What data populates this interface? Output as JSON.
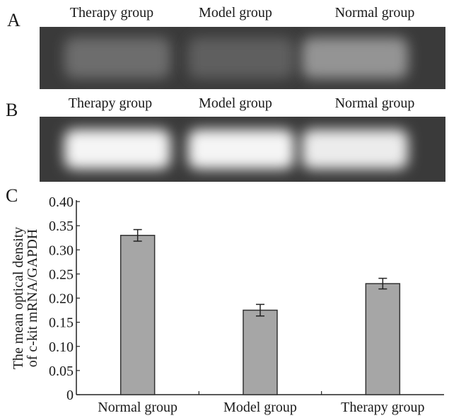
{
  "panels": {
    "a": {
      "letter": "A",
      "lanes": [
        "Therapy group",
        "Model group",
        "Normal group"
      ],
      "band_brightness": [
        0.25,
        0.18,
        0.45
      ]
    },
    "b": {
      "letter": "B",
      "lanes": [
        "Therapy group",
        "Model group",
        "Normal group"
      ],
      "band_brightness": [
        0.95,
        0.95,
        0.9
      ]
    },
    "c": {
      "letter": "C"
    }
  },
  "colors": {
    "bar": "#a6a6a6",
    "bar_stroke": "#333333",
    "gel_bg": "#3a3a3a"
  },
  "chart_data": {
    "type": "bar",
    "categories": [
      "Normal group",
      "Model group",
      "Therapy group"
    ],
    "values": [
      0.33,
      0.175,
      0.23
    ],
    "errors": [
      0.012,
      0.012,
      0.011
    ],
    "ylabel_line1": "The mean optical density",
    "ylabel_line2": "of c-kit mRNA/GAPDH",
    "xlabel": "",
    "ylim": [
      0,
      0.4
    ],
    "yticks": [
      "0",
      "0.05",
      "0.10",
      "0.15",
      "0.20",
      "0.25",
      "0.30",
      "0.35",
      "0.40"
    ],
    "grid": false
  }
}
